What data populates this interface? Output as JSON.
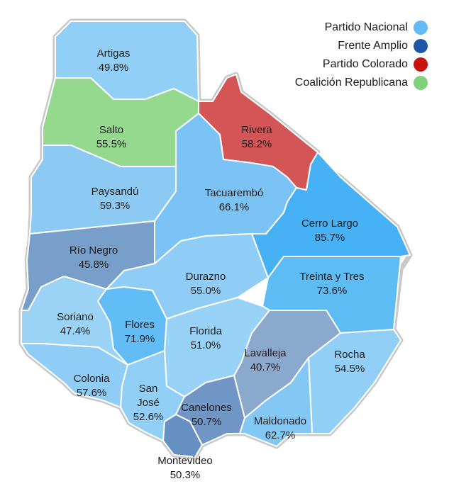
{
  "legend": [
    {
      "label": "Partido Nacional",
      "color": "#64b9f7"
    },
    {
      "label": "Frente Amplio",
      "color": "#1f57a6"
    },
    {
      "label": "Partido Colorado",
      "color": "#c8120f"
    },
    {
      "label": "Coalición Republicana",
      "color": "#7fd27b"
    }
  ],
  "departments": [
    {
      "name": "Artigas",
      "pct": "49.8%",
      "color": "#92cff6"
    },
    {
      "name": "Salto",
      "pct": "55.5%",
      "color": "#94d98e"
    },
    {
      "name": "Rivera",
      "pct": "58.2%",
      "color": "#d45555"
    },
    {
      "name": "Paysandú",
      "pct": "59.3%",
      "color": "#8ccaf4"
    },
    {
      "name": "Tacuarembó",
      "pct": "66.1%",
      "color": "#7bc3f4"
    },
    {
      "name": "Cerro Largo",
      "pct": "85.7%",
      "color": "#46b2f5"
    },
    {
      "name": "Río Negro",
      "pct": "45.8%",
      "color": "#779fc9"
    },
    {
      "name": "Durazno",
      "pct": "55.0%",
      "color": "#8fcdf6"
    },
    {
      "name": "Treinta y Tres",
      "pct": "73.6%",
      "color": "#5ebcf5"
    },
    {
      "name": "Soriano",
      "pct": "47.4%",
      "color": "#9bd3f7"
    },
    {
      "name": "Flores",
      "pct": "71.9%",
      "color": "#62bcf5"
    },
    {
      "name": "Florida",
      "pct": "51.0%",
      "color": "#99d2f7"
    },
    {
      "name": "Lavalleja",
      "pct": "40.7%",
      "color": "#8aa9cc"
    },
    {
      "name": "Rocha",
      "pct": "54.5%",
      "color": "#92cff6"
    },
    {
      "name": "Colonia",
      "pct": "57.6%",
      "color": "#8fcdf6"
    },
    {
      "name": "San\nJosé",
      "pct": "52.6%",
      "color": "#92cff6"
    },
    {
      "name": "Canelones",
      "pct": "50.7%",
      "color": "#6f96c4"
    },
    {
      "name": "Maldonado",
      "pct": "62.7%",
      "color": "#83c7f5"
    },
    {
      "name": "Montevideo",
      "pct": "50.3%",
      "color": "#6690c1"
    }
  ]
}
